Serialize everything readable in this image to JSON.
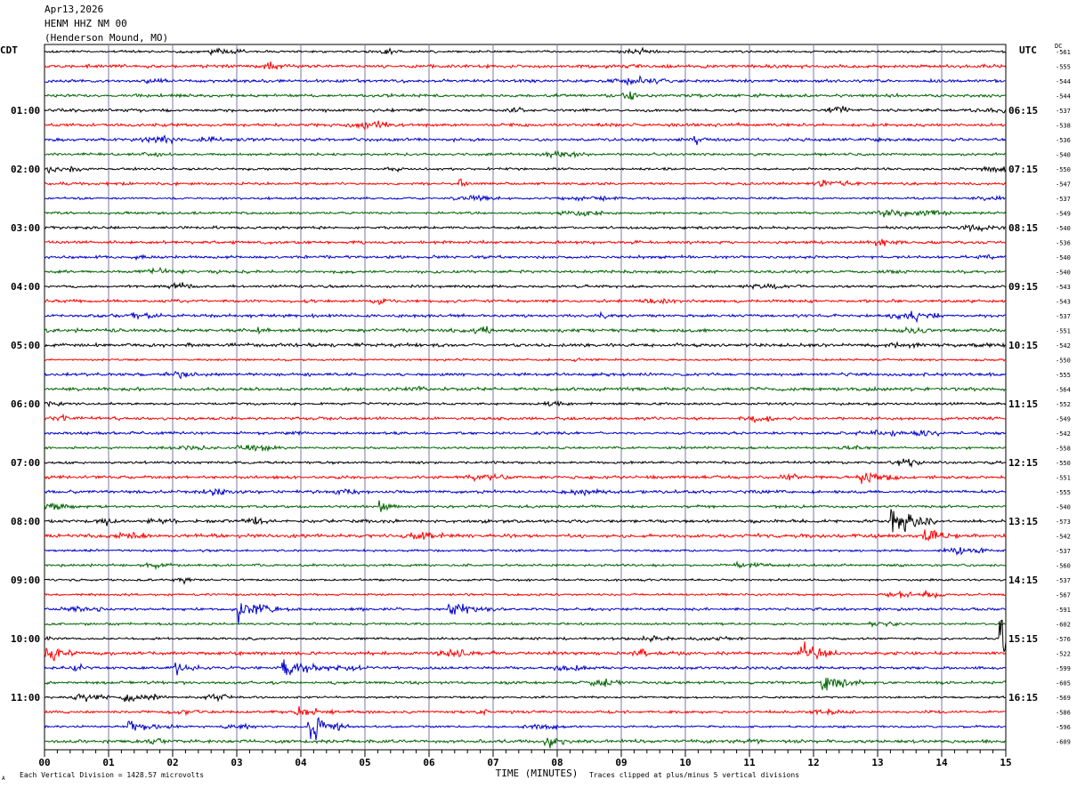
{
  "header": {
    "date": "Apr13,2026",
    "station": "HENM HHZ NM 00",
    "location": "(Henderson Mound, MO)"
  },
  "left_axis_title": "CDT",
  "right_axis_title": "UTC",
  "dc_title": "DC",
  "footer": {
    "division_note": "Each Vertical Division = 1428.57 microvolts",
    "clip_note": "Traces clipped at plus/minus 5 vertical divisions",
    "corner_mark": "A"
  },
  "colors": {
    "cycle": [
      "#000000",
      "#ff0000",
      "#0000cc",
      "#006400"
    ],
    "grid": "#7a7aaa"
  },
  "chart_data": {
    "type": "line",
    "subtype": "helicorder",
    "xlabel": "TIME (MINUTES)",
    "x_ticks": [
      "00",
      "01",
      "02",
      "03",
      "04",
      "05",
      "06",
      "07",
      "08",
      "09",
      "10",
      "11",
      "12",
      "13",
      "14",
      "15"
    ],
    "xlim": [
      0,
      15
    ],
    "left_hour_labels": [
      "01:00",
      "02:00",
      "03:00",
      "04:00",
      "05:00",
      "06:00",
      "07:00",
      "08:00",
      "09:00",
      "10:00",
      "11:00"
    ],
    "right_hour_labels": [
      "06:15",
      "07:15",
      "08:15",
      "09:15",
      "10:15",
      "11:15",
      "12:15",
      "13:15",
      "14:15",
      "15:15",
      "16:15"
    ],
    "dc_offsets": [
      "-561",
      "-555",
      "-544",
      "-544",
      "-537",
      "-538",
      "-536",
      "-540",
      "-550",
      "-547",
      "-537",
      "-549",
      "-540",
      "-536",
      "-540",
      "-540",
      "-543",
      "-543",
      "-537",
      "-551",
      "-542",
      "-550",
      "-555",
      "-564",
      "-552",
      "-549",
      "-542",
      "-558",
      "-550",
      "-551",
      "-555",
      "-540",
      "-573",
      "-542",
      "-537",
      "-560",
      "-537",
      "-567",
      "-591",
      "-602",
      "-576",
      "-522",
      "-599",
      "-605",
      "-569",
      "-586",
      "-596",
      "-609"
    ],
    "trace_count": 48,
    "events": [
      {
        "trace": 29,
        "minute": 12.8,
        "amplitude": 0.5,
        "duration": 0.6
      },
      {
        "trace": 31,
        "minute": 5.3,
        "amplitude": 0.3,
        "duration": 0.3
      },
      {
        "trace": 32,
        "minute": 13.3,
        "amplitude": 0.8,
        "duration": 0.7
      },
      {
        "trace": 33,
        "minute": 13.8,
        "amplitude": 0.45,
        "duration": 0.6
      },
      {
        "trace": 37,
        "minute": 13.8,
        "amplitude": 0.25,
        "duration": 0.3
      },
      {
        "trace": 38,
        "minute": 3.1,
        "amplitude": 0.7,
        "duration": 0.6
      },
      {
        "trace": 38,
        "minute": 6.4,
        "amplitude": 0.3,
        "duration": 0.8
      },
      {
        "trace": 40,
        "minute": 15.0,
        "amplitude": 2.0,
        "duration": 0.25
      },
      {
        "trace": 41,
        "minute": 0.1,
        "amplitude": 0.6,
        "duration": 0.4
      },
      {
        "trace": 41,
        "minute": 11.9,
        "amplitude": 0.55,
        "duration": 0.5
      },
      {
        "trace": 42,
        "minute": 3.8,
        "amplitude": 0.45,
        "duration": 0.8
      },
      {
        "trace": 42,
        "minute": 2.1,
        "amplitude": 0.3,
        "duration": 0.4
      },
      {
        "trace": 43,
        "minute": 12.2,
        "amplitude": 0.5,
        "duration": 0.6
      },
      {
        "trace": 44,
        "minute": 1.3,
        "amplitude": 0.3,
        "duration": 0.5
      },
      {
        "trace": 45,
        "minute": 4.0,
        "amplitude": 0.35,
        "duration": 0.6
      },
      {
        "trace": 46,
        "minute": 4.2,
        "amplitude": 0.7,
        "duration": 0.6
      },
      {
        "trace": 46,
        "minute": 1.4,
        "amplitude": 0.3,
        "duration": 0.8
      },
      {
        "trace": 47,
        "minute": 7.9,
        "amplitude": 0.3,
        "duration": 0.4
      }
    ]
  }
}
